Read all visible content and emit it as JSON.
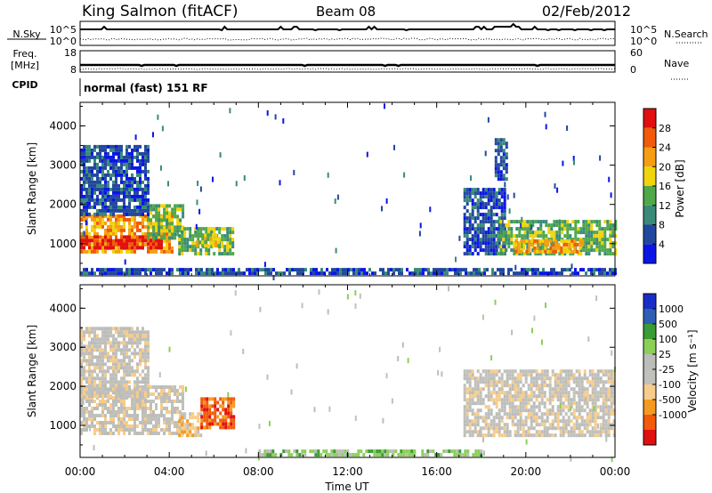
{
  "header": {
    "station": "King Salmon (fitACF)",
    "beam": "Beam 08",
    "date": "02/Feb/2012"
  },
  "top_panels": {
    "nsky": {
      "label": "N.Sky",
      "ticks": [
        "10^5",
        "10^0"
      ]
    },
    "nsearch": {
      "label": "N.Search",
      "ticks": [
        "10^5",
        "10^0"
      ]
    },
    "freq": {
      "label_line1": "Freq.",
      "label_line2": "[MHz]",
      "ticks": [
        "18",
        "8"
      ]
    },
    "nave": {
      "label": "Nave",
      "ticks": [
        "60",
        "0"
      ]
    },
    "cpid": {
      "label": "CPID",
      "text": "normal (fast) 151 RF"
    }
  },
  "colors": {
    "power_scale": [
      "#0b16e6",
      "#22489e",
      "#3a8a78",
      "#4fa84a",
      "#f0d40c",
      "#f59e14",
      "#f05c0c",
      "#e01010"
    ],
    "velocity_scale": [
      "#e01010",
      "#f25a0c",
      "#f59a20",
      "#f7cc8a",
      "#c0c0bc",
      "#bcbcb8",
      "#8ccf58",
      "#3a9c34",
      "#2f5fb4",
      "#1a2cc8"
    ]
  },
  "chart_data": [
    {
      "type": "heatmap",
      "name": "power",
      "xlabel": "",
      "ylabel": "Slant Range [km]",
      "x_ticks": [
        "00:00",
        "04:00",
        "08:00",
        "12:00",
        "16:00",
        "20:00",
        "00:00"
      ],
      "x_range_hours": [
        0,
        24
      ],
      "y_ticks": [
        1000,
        2000,
        3000,
        4000
      ],
      "y_range_km": [
        180,
        4600
      ],
      "colorbar": {
        "label": "Power [dB]",
        "ticks": [
          4,
          8,
          12,
          16,
          20,
          24,
          28
        ],
        "range": [
          0,
          32
        ]
      },
      "regions": [
        {
          "t0": 0.0,
          "t1": 4.1,
          "r0": 750,
          "r1": 1700,
          "level": 5
        },
        {
          "t0": 0.0,
          "t1": 3.6,
          "r0": 850,
          "r1": 1150,
          "level": 7
        },
        {
          "t0": 3.0,
          "t1": 4.6,
          "r0": 1100,
          "r1": 2000,
          "level": 3
        },
        {
          "t0": 4.4,
          "t1": 6.9,
          "r0": 700,
          "r1": 1350,
          "level": 3
        },
        {
          "t0": 5.2,
          "t1": 6.2,
          "r0": 900,
          "r1": 1250,
          "level": 4
        },
        {
          "t0": 0.0,
          "t1": 3.0,
          "r0": 1700,
          "r1": 3500,
          "level": 1
        },
        {
          "t0": 17.2,
          "t1": 19.0,
          "r0": 700,
          "r1": 2400,
          "level": 1
        },
        {
          "t0": 18.7,
          "t1": 24.0,
          "r0": 700,
          "r1": 1600,
          "level": 3
        },
        {
          "t0": 19.5,
          "t1": 22.5,
          "r0": 750,
          "r1": 1100,
          "level": 5
        },
        {
          "t0": 18.6,
          "t1": 19.1,
          "r0": 2600,
          "r1": 3600,
          "level": 1
        },
        {
          "t0": 0.0,
          "t1": 24.0,
          "r0": 200,
          "r1": 330,
          "level": 1
        }
      ]
    },
    {
      "type": "heatmap",
      "name": "velocity",
      "xlabel": "Time UT",
      "ylabel": "Slant Range [km]",
      "x_ticks": [
        "00:00",
        "04:00",
        "08:00",
        "12:00",
        "16:00",
        "20:00",
        "00:00"
      ],
      "x_range_hours": [
        0,
        24
      ],
      "y_ticks": [
        1000,
        2000,
        3000,
        4000
      ],
      "y_range_km": [
        180,
        4600
      ],
      "colorbar": {
        "label": "Velocity [m s⁻¹]",
        "ticks": [
          1000,
          500,
          100,
          25,
          -25,
          -100,
          -500,
          -1000
        ]
      },
      "regions": [
        {
          "t0": 0.0,
          "t1": 4.6,
          "r0": 750,
          "r1": 2000,
          "level": 4
        },
        {
          "t0": 4.4,
          "t1": 5.4,
          "r0": 700,
          "r1": 1300,
          "level": 3
        },
        {
          "t0": 5.4,
          "t1": 6.9,
          "r0": 900,
          "r1": 1700,
          "level": 1
        },
        {
          "t0": 0.0,
          "t1": 3.0,
          "r0": 1700,
          "r1": 3500,
          "level": 4
        },
        {
          "t0": 17.2,
          "t1": 24.0,
          "r0": 700,
          "r1": 2400,
          "level": 4
        },
        {
          "t0": 8.0,
          "t1": 18.0,
          "r0": 200,
          "r1": 330,
          "level": 6
        }
      ]
    }
  ]
}
